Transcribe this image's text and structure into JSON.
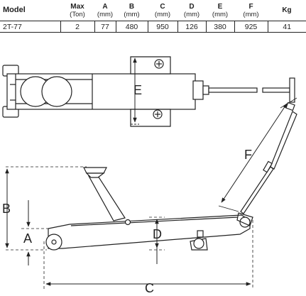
{
  "table": {
    "headers": [
      {
        "top": "Model",
        "sub": ""
      },
      {
        "top": "Max",
        "sub": "(Ton)"
      },
      {
        "top": "A",
        "sub": "(mm)"
      },
      {
        "top": "B",
        "sub": "(mm)"
      },
      {
        "top": "C",
        "sub": "(mm)"
      },
      {
        "top": "D",
        "sub": "(mm)"
      },
      {
        "top": "E",
        "sub": "(mm)"
      },
      {
        "top": "F",
        "sub": "(mm)"
      },
      {
        "top": "Kg",
        "sub": ""
      }
    ],
    "rows": [
      [
        "2T-77",
        "2",
        "77",
        "480",
        "950",
        "126",
        "380",
        "925",
        "41"
      ]
    ]
  },
  "diagram": {
    "top_view": {
      "dimension_labels": {
        "E": "E"
      }
    },
    "side_view": {
      "dimension_labels": {
        "A": "A",
        "B": "B",
        "C": "C",
        "D": "D",
        "F": "F"
      }
    }
  }
}
